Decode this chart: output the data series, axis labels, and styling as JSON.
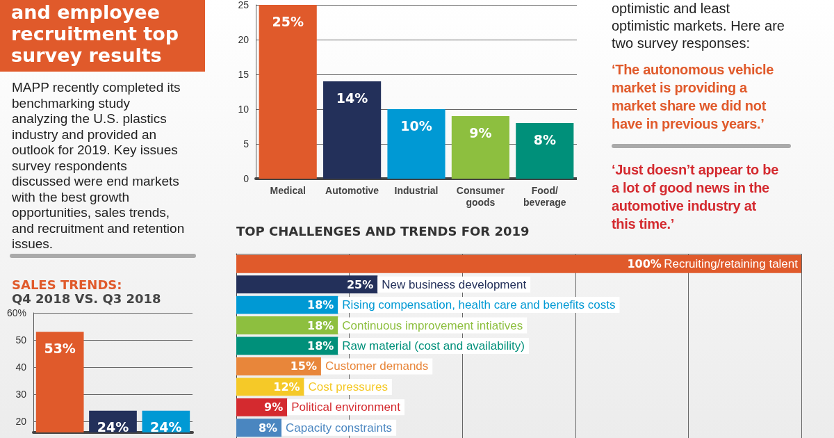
{
  "chart_data": [
    {
      "type": "other",
      "title": "and employee recruitment top survey results",
      "annotations": [
        "MAPP recently completed its benchmarking study analyzing the U.S. plastics industry and provided an outlook for 2019. Key issues survey respondents discussed were end markets with the best growth opportunities, sales trends, and recruitment and retention issues."
      ]
    },
    {
      "type": "bar",
      "categories": [
        "Medical",
        "Automotive",
        "Industrial",
        "Consumer goods",
        "Food/beverage"
      ],
      "values": [
        25,
        14,
        10,
        9,
        8
      ],
      "colors": [
        "#e05a2b",
        "#23305a",
        "#0099d4",
        "#8dbf3f",
        "#00907a"
      ],
      "value_labels": [
        "25%",
        "14%",
        "10%",
        "9%",
        "8%"
      ],
      "ylim": [
        0,
        25
      ],
      "yticks": [
        0,
        5,
        10,
        15,
        20,
        25
      ],
      "grid": "y"
    },
    {
      "type": "other",
      "annotations": [
        "optimistic and least optimistic markets. Here are two survey responses:",
        "‘The autonomous vehicle market is providing a market share we did not have in previous years.’",
        "‘Just doesn’t appear to be a lot of good news in the automotive industry at this time.’"
      ]
    },
    {
      "type": "bar",
      "title": "SALES TRENDS:",
      "subtitle": "Q4 2018 VS. Q3 2018",
      "categories": [
        null,
        null,
        null
      ],
      "values": [
        53,
        24,
        24
      ],
      "colors": [
        "#e05a2b",
        "#23305a",
        "#0099d4"
      ],
      "value_labels": [
        "53%",
        "24%",
        "24%"
      ],
      "ylim": [
        16,
        60
      ],
      "yticks": [
        20,
        30,
        40,
        50,
        {
          "value": 60,
          "label": "60%"
        }
      ],
      "grid": "y"
    },
    {
      "type": "bar",
      "orientation": "horizontal",
      "title": "TOP CHALLENGES AND TRENDS FOR 2019",
      "categories": [
        "Recruiting/retaining talent",
        "New business development",
        "Rising compensation, health care and benefits costs",
        "Continuous improvement intiatives",
        "Raw material (cost and availability)",
        "Customer demands",
        "Cost pressures",
        "Political environment",
        "Capacity constraints"
      ],
      "values": [
        100,
        25,
        18,
        18,
        18,
        15,
        12,
        9,
        8
      ],
      "colors": [
        "#e05a2b",
        "#23305a",
        "#0099d4",
        "#8dbf3f",
        "#00907a",
        "#e8863a",
        "#f5c928",
        "#d42a2f",
        "#4a86c0"
      ],
      "value_labels": [
        "100%",
        "25%",
        "18%",
        "18%",
        "18%",
        "15%",
        "12%",
        "9%",
        "8%"
      ],
      "xlim": [
        0,
        100
      ],
      "xticks": [
        {
          "value": 0,
          "label": null
        },
        {
          "value": 20,
          "label": null
        },
        {
          "value": 40,
          "label": null
        },
        {
          "value": 60,
          "label": null
        },
        {
          "value": 80,
          "label": null
        },
        {
          "value": 100,
          "label": null
        }
      ],
      "grid": "x"
    }
  ]
}
